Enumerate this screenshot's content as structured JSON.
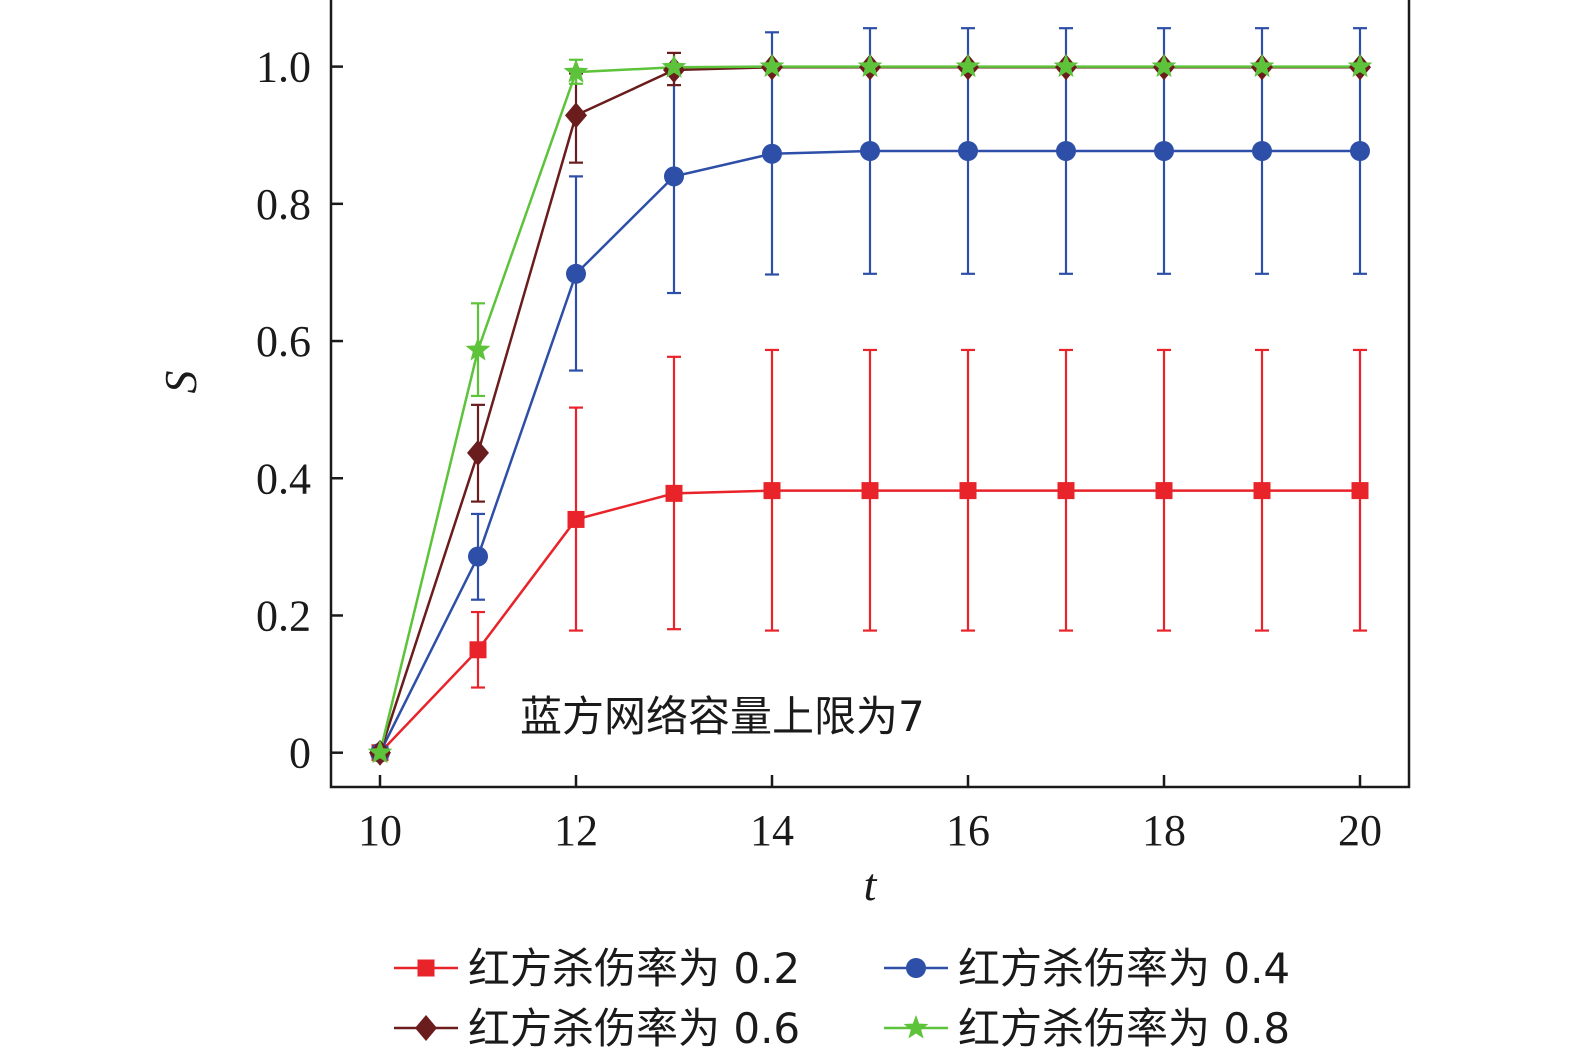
{
  "chart_data": {
    "type": "line",
    "title": "",
    "xlabel": "t",
    "ylabel": "S",
    "xlim": [
      9.5,
      20.5
    ],
    "ylim": [
      -0.05,
      1.1
    ],
    "xticks": [
      "10",
      "12",
      "14",
      "16",
      "18",
      "20"
    ],
    "yticks": [
      "0",
      "0.2",
      "0.4",
      "0.6",
      "0.8",
      "1.0"
    ],
    "grid": false,
    "legend_placement": "bottom",
    "annotation": "蓝方网络容量上限为7",
    "x": [
      10,
      11,
      12,
      13,
      14,
      15,
      16,
      17,
      18,
      19,
      20
    ],
    "series": [
      {
        "name": "红方杀伤率为 0.2",
        "color": "#e8232a",
        "marker": "square",
        "values": [
          0,
          0.15,
          0.34,
          0.378,
          0.382,
          0.382,
          0.382,
          0.382,
          0.382,
          0.382,
          0.382
        ],
        "err_low": [
          0,
          0.095,
          0.178,
          0.18,
          0.178,
          0.178,
          0.178,
          0.178,
          0.178,
          0.178,
          0.178
        ],
        "err_high": [
          0,
          0.205,
          0.503,
          0.577,
          0.587,
          0.587,
          0.587,
          0.587,
          0.587,
          0.587,
          0.587
        ]
      },
      {
        "name": "红方杀伤率为 0.4",
        "color": "#2e4fa8",
        "marker": "circle",
        "values": [
          0,
          0.286,
          0.698,
          0.84,
          0.873,
          0.877,
          0.877,
          0.877,
          0.877,
          0.877,
          0.877
        ],
        "err_low": [
          0,
          0.223,
          0.557,
          0.67,
          0.697,
          0.698,
          0.698,
          0.698,
          0.698,
          0.698,
          0.698
        ],
        "err_high": [
          0,
          0.348,
          0.84,
          1.0,
          1.05,
          1.056,
          1.056,
          1.056,
          1.056,
          1.056,
          1.056
        ]
      },
      {
        "name": "红方杀伤率为 0.6",
        "color": "#6b1d1d",
        "marker": "diamond",
        "values": [
          0,
          0.437,
          0.929,
          0.995,
          0.999,
          0.999,
          0.999,
          0.999,
          0.999,
          0.999,
          0.999
        ],
        "err_low": [
          0,
          0.366,
          0.86,
          0.973,
          0.999,
          0.999,
          0.999,
          0.999,
          0.999,
          0.999,
          0.999
        ],
        "err_high": [
          0,
          0.507,
          0.99,
          1.02,
          0.999,
          0.999,
          0.999,
          0.999,
          0.999,
          0.999,
          0.999
        ]
      },
      {
        "name": "红方杀伤率为 0.8",
        "color": "#5cc33a",
        "marker": "star",
        "values": [
          0,
          0.587,
          0.992,
          0.999,
          1.0,
          1.0,
          1.0,
          1.0,
          1.0,
          1.0,
          1.0
        ],
        "err_low": [
          0,
          0.52,
          0.975,
          0.999,
          1.0,
          1.0,
          1.0,
          1.0,
          1.0,
          1.0,
          1.0
        ],
        "err_high": [
          0,
          0.655,
          1.01,
          0.999,
          1.0,
          1.0,
          1.0,
          1.0,
          1.0,
          1.0,
          1.0
        ]
      }
    ]
  }
}
